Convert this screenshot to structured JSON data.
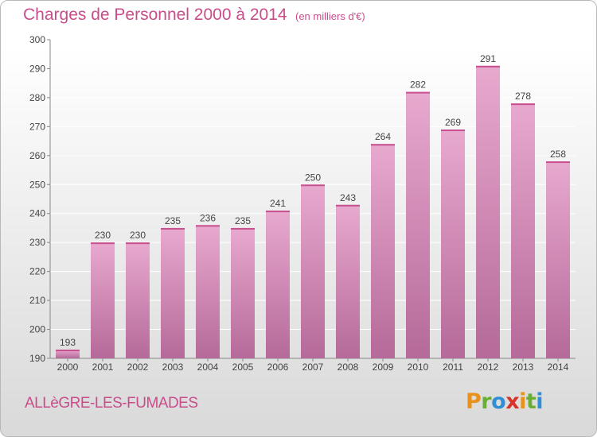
{
  "header": {
    "title": "Charges de Personnel 2000 à 2014",
    "subtitle": "(en milliers d'€)"
  },
  "footer": {
    "commune": "ALLèGRE-LES-FUMADES",
    "logo_letters": [
      "P",
      "r",
      "o",
      "x",
      "i",
      "t",
      "i"
    ],
    "logo_colors": [
      "#e8921e",
      "#6aae33",
      "#2e8fd6",
      "#d8322a",
      "#e8921e",
      "#6aae33",
      "#2e8fd6"
    ]
  },
  "colors": {
    "accent": "#c94d8b",
    "bar_top": "#e8a9cf",
    "bar_bottom": "#b56a99",
    "bar_cap": "#c8508f",
    "grid": "#ffffff"
  },
  "chart_data": {
    "type": "bar",
    "title": "Charges de Personnel 2000 à 2014",
    "subtitle": "(en milliers d'€)",
    "categories": [
      "2000",
      "2001",
      "2002",
      "2003",
      "2004",
      "2005",
      "2006",
      "2007",
      "2008",
      "2009",
      "2010",
      "2011",
      "2012",
      "2013",
      "2014"
    ],
    "values": [
      193,
      230,
      230,
      235,
      236,
      235,
      241,
      250,
      243,
      264,
      282,
      269,
      291,
      278,
      258
    ],
    "ylim": [
      190,
      300
    ],
    "yticks": [
      190,
      200,
      210,
      220,
      230,
      240,
      250,
      260,
      270,
      280,
      290,
      300
    ],
    "grid": true,
    "data_labels": true
  }
}
